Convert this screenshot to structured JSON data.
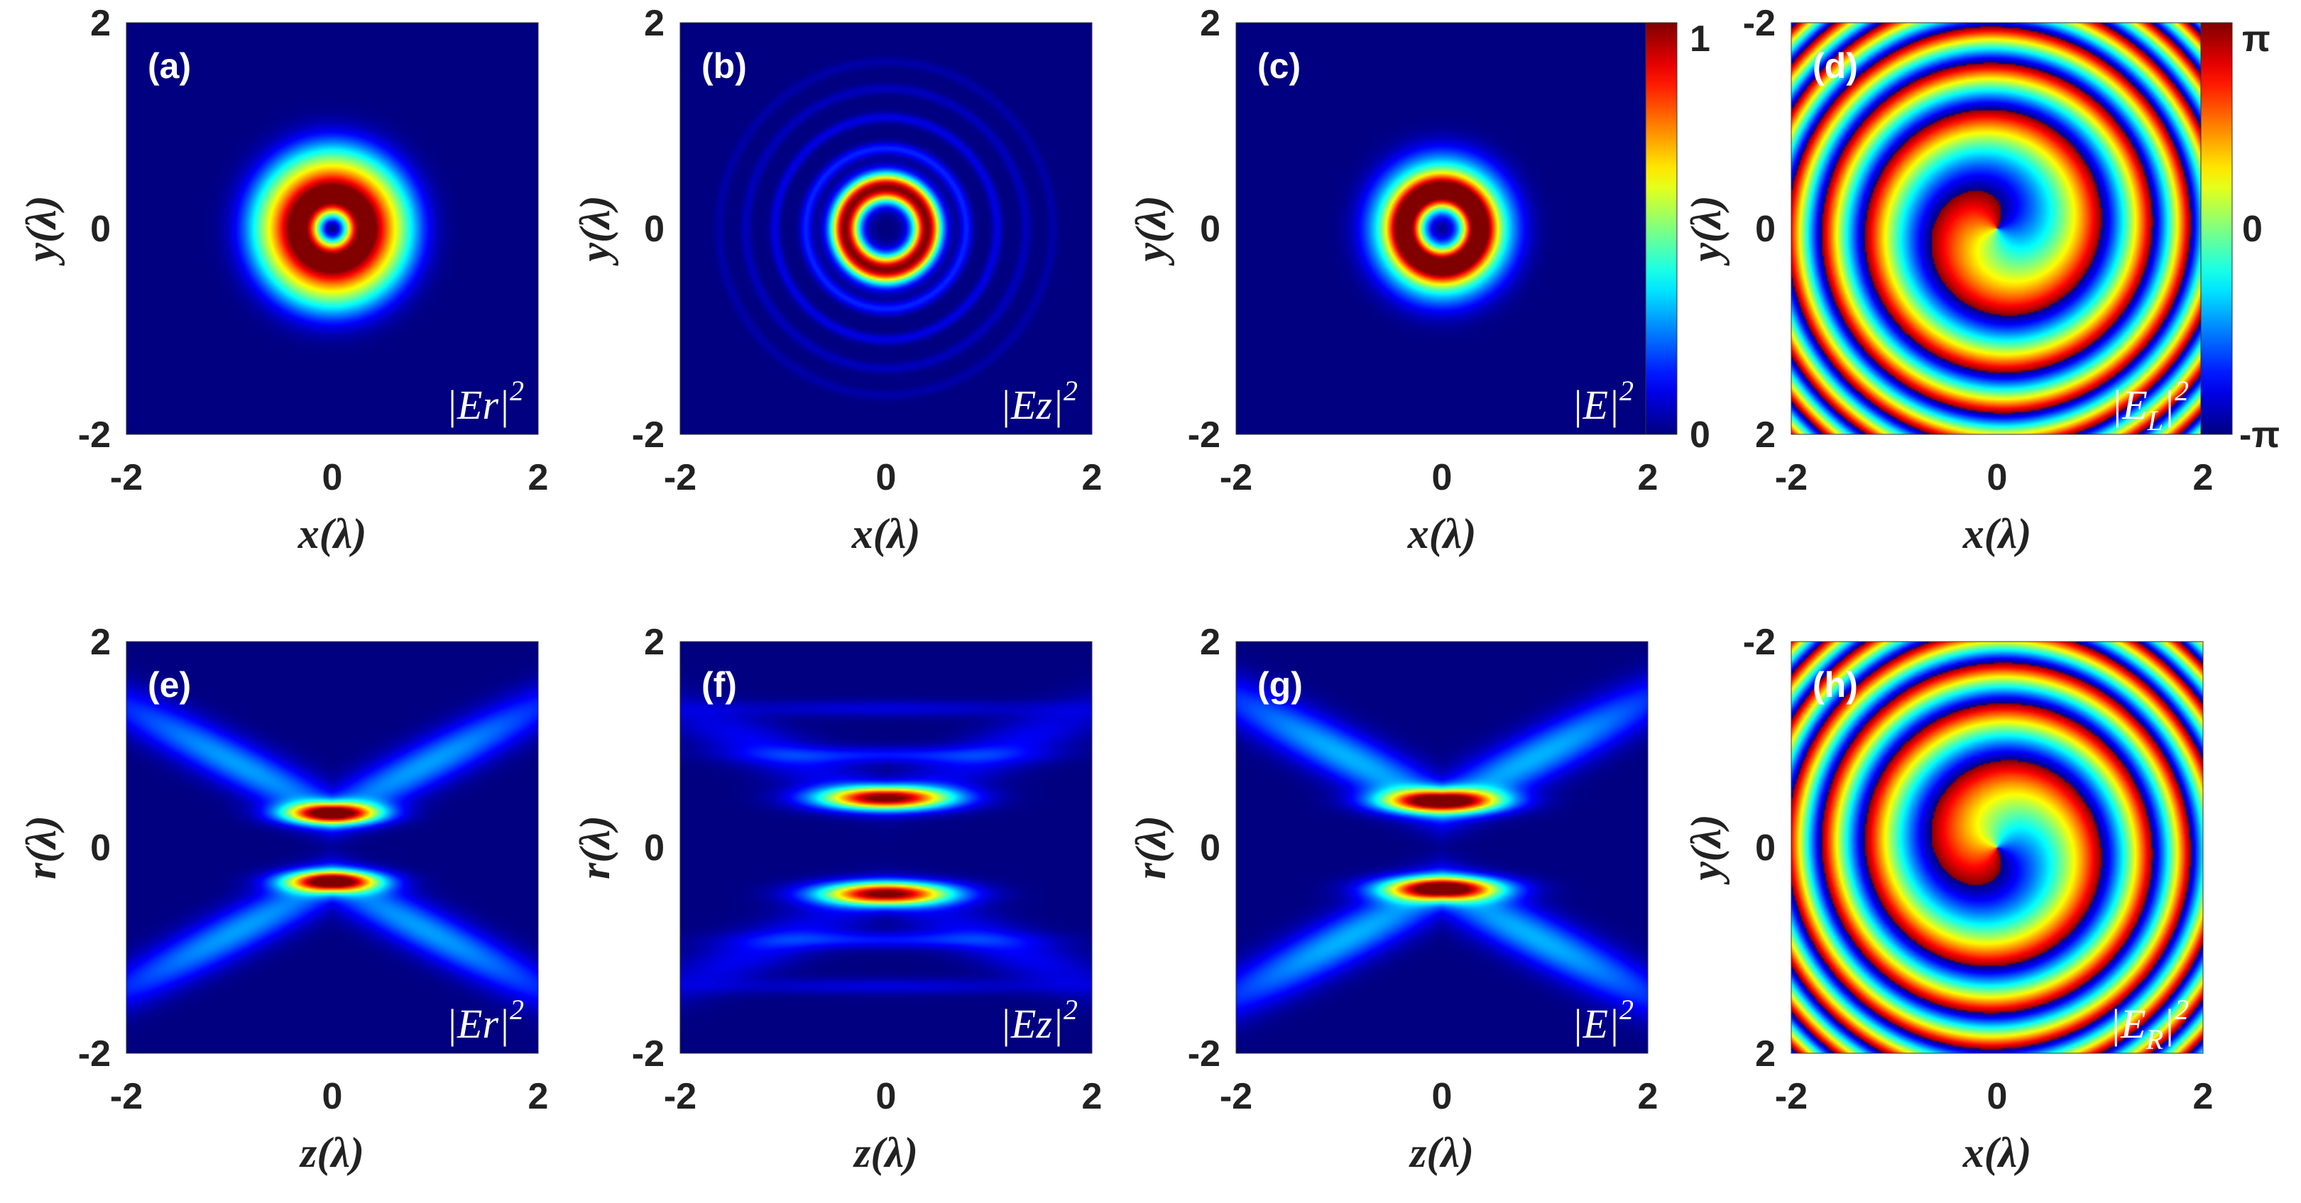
{
  "colorbars": {
    "intensity": {
      "min_label": "0",
      "max_label": "1",
      "range": [
        0,
        1
      ]
    },
    "phase": {
      "min_label": "-π",
      "mid_label": "0",
      "max_label": "π",
      "range": [
        -3.1416,
        3.1416
      ]
    }
  },
  "colors": {
    "jet_low": "#00008f",
    "jet_high": "#800000"
  },
  "chart_data": [
    {
      "type": "heatmap",
      "panel": "(a)",
      "quantity": "|Er|²",
      "qlabel": "|Er|",
      "qsup": "2",
      "xlabel": "x(λ)",
      "ylabel": "y(λ)",
      "xlim": [
        -2,
        2
      ],
      "ylim": [
        -2,
        2
      ],
      "xticks": [
        "-2",
        "0",
        "2"
      ],
      "yticks": [
        "2",
        "0",
        "-2"
      ],
      "map": "ring_a",
      "colorbar": ""
    },
    {
      "type": "heatmap",
      "panel": "(b)",
      "quantity": "|Ez|²",
      "qlabel": "|Ez|",
      "qsup": "2",
      "xlabel": "x(λ)",
      "ylabel": "y(λ)",
      "xlim": [
        -2,
        2
      ],
      "ylim": [
        -2,
        2
      ],
      "xticks": [
        "-2",
        "0",
        "2"
      ],
      "yticks": [
        "2",
        "0",
        "-2"
      ],
      "map": "ring_b",
      "colorbar": ""
    },
    {
      "type": "heatmap",
      "panel": "(c)",
      "quantity": "|E|²",
      "qlabel": "|E|",
      "qsup": "2",
      "xlabel": "x(λ)",
      "ylabel": "y(λ)",
      "xlim": [
        -2,
        2
      ],
      "ylim": [
        -2,
        2
      ],
      "xticks": [
        "-2",
        "0",
        "2"
      ],
      "yticks": [
        "2",
        "0",
        "-2"
      ],
      "map": "ring_c",
      "colorbar": "intensity"
    },
    {
      "type": "heatmap",
      "panel": "(d)",
      "quantity": "|E_L|²",
      "qlabel": "|E",
      "qsub": "L",
      "qsup": "2",
      "xlabel": "x(λ)",
      "ylabel": "y(λ)",
      "xlim": [
        -2,
        2
      ],
      "ylim": [
        -2,
        2
      ],
      "xticks": [
        "-2",
        "0",
        "2"
      ],
      "yticks": [
        "-2",
        "0",
        "2"
      ],
      "map": "phase_L",
      "colorbar": "phase"
    },
    {
      "type": "heatmap",
      "panel": "(e)",
      "quantity": "|Er|²",
      "qlabel": "|Er|",
      "qsup": "2",
      "xlabel": "z(λ)",
      "ylabel": "r(λ)",
      "xlim": [
        -2,
        2
      ],
      "ylim": [
        -2,
        2
      ],
      "xticks": [
        "-2",
        "0",
        "2"
      ],
      "yticks": [
        "2",
        "0",
        "-2"
      ],
      "map": "lobe_e",
      "colorbar": ""
    },
    {
      "type": "heatmap",
      "panel": "(f)",
      "quantity": "|Ez|²",
      "qlabel": "|Ez|",
      "qsup": "2",
      "xlabel": "z(λ)",
      "ylabel": "r(λ)",
      "xlim": [
        -2,
        2
      ],
      "ylim": [
        -2,
        2
      ],
      "xticks": [
        "-2",
        "0",
        "2"
      ],
      "yticks": [
        "2",
        "0",
        "-2"
      ],
      "map": "lobe_f",
      "colorbar": ""
    },
    {
      "type": "heatmap",
      "panel": "(g)",
      "quantity": "|E|²",
      "qlabel": "|E|",
      "qsup": "2",
      "xlabel": "z(λ)",
      "ylabel": "r(λ)",
      "xlim": [
        -2,
        2
      ],
      "ylim": [
        -2,
        2
      ],
      "xticks": [
        "-2",
        "0",
        "2"
      ],
      "yticks": [
        "2",
        "0",
        "-2"
      ],
      "map": "lobe_g",
      "colorbar": ""
    },
    {
      "type": "heatmap",
      "panel": "(h)",
      "quantity": "|E_R|²",
      "qlabel": "|E",
      "qsub": "R",
      "qsup": "2",
      "xlabel": "x(λ)",
      "ylabel": "y(λ)",
      "xlim": [
        -2,
        2
      ],
      "ylim": [
        -2,
        2
      ],
      "xticks": [
        "-2",
        "0",
        "2"
      ],
      "yticks": [
        "-2",
        "0",
        "2"
      ],
      "map": "phase_R",
      "colorbar": ""
    }
  ]
}
